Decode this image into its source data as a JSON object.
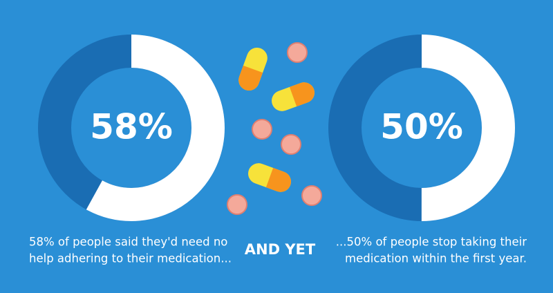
{
  "chart_data": [
    {
      "type": "donut",
      "values": [
        58
      ],
      "value_labels": [
        "58%"
      ],
      "color": "#ffffff",
      "track_color": "#1a6db3",
      "annotations": [
        "58% of people said they'd need no",
        "help adhering to their medication..."
      ]
    },
    {
      "type": "donut",
      "values": [
        50
      ],
      "value_labels": [
        "50%"
      ],
      "color": "#ffffff",
      "track_color": "#1a6db3",
      "annotations": [
        "...50% of people stop taking their",
        "medication within the first year."
      ]
    }
  ],
  "middle_text": "AND YET"
}
